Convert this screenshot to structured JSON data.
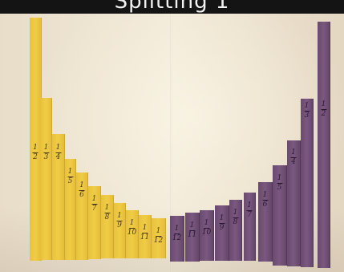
{
  "banner": {
    "text": "Splitting 1"
  },
  "colors": {
    "yellow_strip": "#f0cc47",
    "purple_strip": "#7a5880",
    "paper": "#efe6d4",
    "banner": "#141414"
  },
  "strips": [
    {
      "color": "yellow",
      "label": {
        "num": "1",
        "den": "2"
      }
    },
    {
      "color": "yellow",
      "label": {
        "num": "1",
        "den": "3"
      }
    },
    {
      "color": "yellow",
      "label": {
        "num": "1",
        "den": "4"
      }
    },
    {
      "color": "yellow",
      "label": {
        "num": "1",
        "den": "5"
      }
    },
    {
      "color": "yellow",
      "label": {
        "num": "1",
        "den": "6"
      }
    },
    {
      "color": "yellow",
      "label": {
        "num": "1",
        "den": "7"
      }
    },
    {
      "color": "yellow",
      "label": {
        "num": "1",
        "den": "8"
      }
    },
    {
      "color": "yellow",
      "label": {
        "num": "1",
        "den": "9"
      }
    },
    {
      "color": "yellow",
      "label": {
        "num": "1",
        "den": "10"
      }
    },
    {
      "color": "yellow",
      "label": {
        "num": "1",
        "den": "11"
      }
    },
    {
      "color": "yellow",
      "label": {
        "num": "1",
        "den": "12"
      }
    },
    {
      "color": "purple",
      "label": {
        "num": "1",
        "den": "12"
      }
    },
    {
      "color": "purple",
      "label": {
        "num": "1",
        "den": "11"
      }
    },
    {
      "color": "purple",
      "label": {
        "num": "1",
        "den": "10"
      }
    },
    {
      "color": "purple",
      "label": {
        "num": "1",
        "den": "9"
      }
    },
    {
      "color": "purple",
      "label": {
        "num": "1",
        "den": "8"
      }
    },
    {
      "color": "purple",
      "label": {
        "num": "1",
        "den": "7"
      }
    },
    {
      "color": "purple",
      "label": {
        "num": "1",
        "den": "6"
      }
    },
    {
      "color": "purple",
      "label": {
        "num": "1",
        "den": "5"
      }
    },
    {
      "color": "purple",
      "label": {
        "num": "1",
        "den": "4"
      }
    },
    {
      "color": "purple",
      "label": {
        "num": "1",
        "den": "3"
      }
    },
    {
      "color": "purple",
      "label": {
        "num": "1",
        "den": "2"
      }
    }
  ]
}
